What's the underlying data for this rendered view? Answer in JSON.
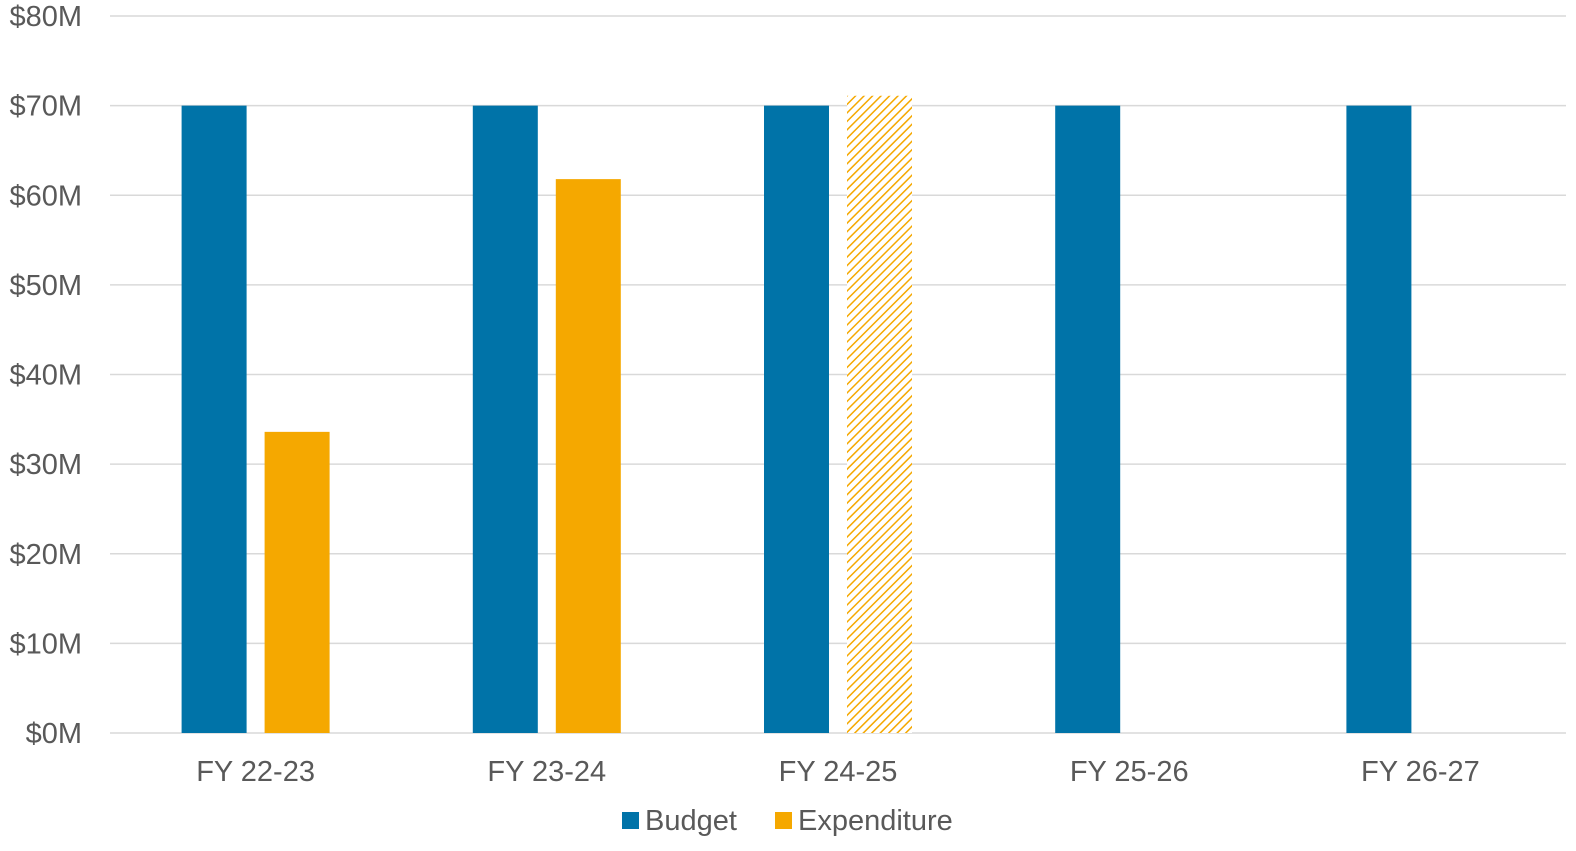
{
  "chart_data": {
    "type": "bar",
    "categories": [
      "FY 22-23",
      "FY 23-24",
      "FY 24-25",
      "FY 25-26",
      "FY 26-27"
    ],
    "series": [
      {
        "name": "Budget",
        "color": "#0073a8",
        "values": [
          70,
          70,
          70,
          70,
          70
        ]
      },
      {
        "name": "Expenditure",
        "color": "#f5a800",
        "values": [
          33.6,
          61.8,
          71.1,
          null,
          null
        ],
        "projected": [
          false,
          false,
          true,
          false,
          false
        ]
      }
    ],
    "y_ticks": [
      "$0M",
      "$10M",
      "$20M",
      "$30M",
      "$40M",
      "$50M",
      "$60M",
      "$70M",
      "$80M"
    ],
    "ylim": [
      0,
      80
    ],
    "grid": true,
    "legend_position": "bottom"
  }
}
